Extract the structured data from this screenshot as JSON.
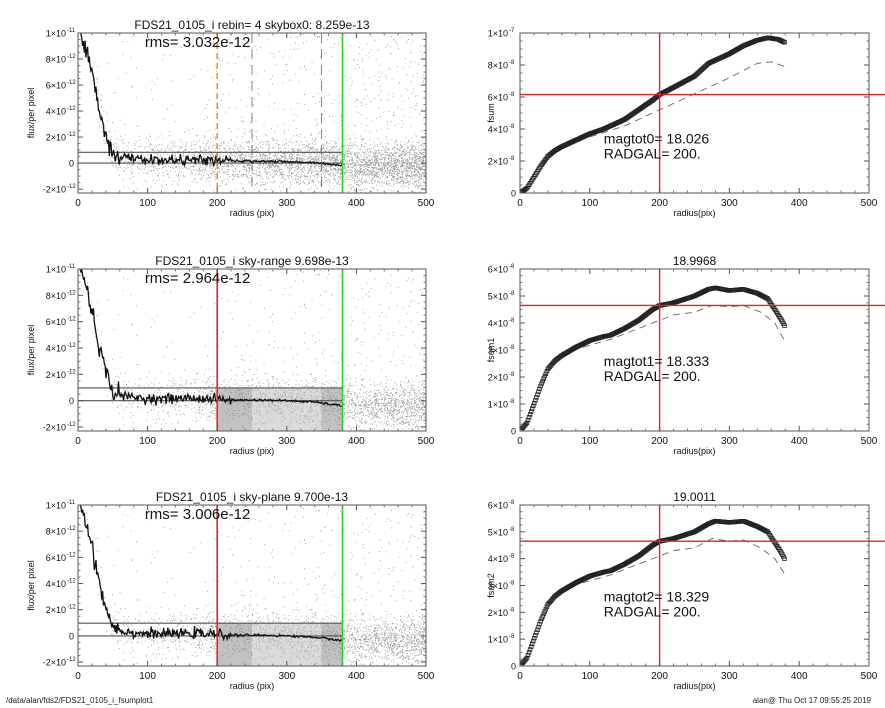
{
  "footer": {
    "path": "/data/alan/fds2/FDS21_0105_i_fsumplot1",
    "stamp": "alan@  Thu Oct 17 09:55:25 2019"
  },
  "colors": {
    "scatter": "#9a9a9a",
    "profile": "#111111",
    "red_marker": "#e0262a",
    "green_marker": "#2bd12b",
    "orange_marker": "#f0922e",
    "sky_line": "#555555",
    "dashed_model": "#666666",
    "sky_box_light": "#bdbdbd",
    "sky_box_dark": "#8f8f8f"
  },
  "chart_data": [
    {
      "id": "profile-rebin",
      "type": "scatter",
      "title": "FDS21_0105_i rebin= 4    skybox0:  8.259e-13",
      "annotation": "rms= 3.032e-12",
      "xlabel": "radius (pix)",
      "ylabel": "flux/per pixel",
      "xlim": [
        0,
        500
      ],
      "ylim": [
        -2.3e-12,
        1e-11
      ],
      "xticks": [
        "0",
        "100",
        "200",
        "300",
        "400",
        "500"
      ],
      "yticks": [
        {
          "v": -2e-12,
          "mant": "-2×10",
          "exp": "-12"
        },
        {
          "v": 0,
          "mant": "0",
          "exp": ""
        },
        {
          "v": 2e-12,
          "mant": "2×10",
          "exp": "-12"
        },
        {
          "v": 4e-12,
          "mant": "4×10",
          "exp": "-12"
        },
        {
          "v": 6e-12,
          "mant": "6×10",
          "exp": "-12"
        },
        {
          "v": 8e-12,
          "mant": "8×10",
          "exp": "-12"
        },
        {
          "v": 1e-11,
          "mant": "1×10",
          "exp": "-11"
        }
      ],
      "hlines": [
        {
          "y": 0,
          "x_end": 380
        },
        {
          "y": 8.259e-13,
          "x_end": 380
        }
      ],
      "vlines": [
        {
          "x": 200,
          "style": "dashed",
          "color": "orange_marker"
        },
        {
          "x": 250,
          "style": "dashed",
          "color": "dashed_model"
        },
        {
          "x": 350,
          "style": "dashed",
          "color": "dashed_model"
        },
        {
          "x": 380,
          "style": "solid",
          "color": "green_marker"
        }
      ],
      "sky_boxes": [],
      "profile_end_x": 380,
      "profile_points": [
        [
          3,
          1e-11
        ],
        [
          10,
          9e-12
        ],
        [
          15,
          8e-12
        ],
        [
          20,
          6.8e-12
        ],
        [
          25,
          5.6e-12
        ],
        [
          30,
          4.3e-12
        ],
        [
          35,
          3.2e-12
        ],
        [
          40,
          2.2e-12
        ],
        [
          45,
          1.4e-12
        ],
        [
          50,
          8e-13
        ],
        [
          60,
          5e-13
        ],
        [
          70,
          4e-13
        ],
        [
          90,
          3e-13
        ],
        [
          120,
          2e-13
        ],
        [
          160,
          2.5e-13
        ],
        [
          200,
          2e-13
        ],
        [
          230,
          1.5e-13
        ],
        [
          270,
          1.5e-13
        ],
        [
          300,
          1e-13
        ],
        [
          340,
          5e-14
        ],
        [
          380,
          -2e-13
        ]
      ]
    },
    {
      "id": "growth-fsum",
      "type": "scatter",
      "title": "",
      "annotation_lines": [
        "magtot0=  18.026",
        "RADGAL=    200."
      ],
      "xlabel": "radius(pix)",
      "ylabel": "fsum",
      "xlim": [
        0,
        500
      ],
      "ylim": [
        0,
        1e-07
      ],
      "xticks": [
        "0",
        "100",
        "200",
        "300",
        "400",
        "500"
      ],
      "yticks": [
        {
          "v": 0,
          "mant": "0",
          "exp": ""
        },
        {
          "v": 2e-08,
          "mant": "2×10",
          "exp": "-8"
        },
        {
          "v": 4e-08,
          "mant": "4×10",
          "exp": "-8"
        },
        {
          "v": 6e-08,
          "mant": "6×10",
          "exp": "-8"
        },
        {
          "v": 8e-08,
          "mant": "8×10",
          "exp": "-8"
        },
        {
          "v": 1e-07,
          "mant": "1×10",
          "exp": "-7"
        }
      ],
      "crosshair": {
        "x": 200,
        "y": 6.15e-08
      },
      "growth_curve": [
        [
          0,
          0
        ],
        [
          10,
          3e-09
        ],
        [
          20,
          1e-08
        ],
        [
          30,
          1.7e-08
        ],
        [
          40,
          2.3e-08
        ],
        [
          50,
          2.65e-08
        ],
        [
          60,
          2.9e-08
        ],
        [
          80,
          3.3e-08
        ],
        [
          100,
          3.7e-08
        ],
        [
          120,
          4e-08
        ],
        [
          130,
          4.2e-08
        ],
        [
          150,
          4.6e-08
        ],
        [
          170,
          5.2e-08
        ],
        [
          190,
          5.8e-08
        ],
        [
          200,
          6.15e-08
        ],
        [
          220,
          6.6e-08
        ],
        [
          250,
          7.3e-08
        ],
        [
          270,
          8.1e-08
        ],
        [
          280,
          8.3e-08
        ],
        [
          300,
          8.7e-08
        ],
        [
          320,
          9.2e-08
        ],
        [
          340,
          9.55e-08
        ],
        [
          355,
          9.7e-08
        ],
        [
          370,
          9.6e-08
        ],
        [
          380,
          9.4e-08
        ]
      ],
      "model_curve": [
        [
          100,
          3.5e-08
        ],
        [
          150,
          4.2e-08
        ],
        [
          200,
          5.2e-08
        ],
        [
          250,
          6.2e-08
        ],
        [
          300,
          7.2e-08
        ],
        [
          340,
          8.1e-08
        ],
        [
          360,
          8.2e-08
        ],
        [
          380,
          7.9e-08
        ]
      ]
    },
    {
      "id": "profile-sky-range",
      "type": "scatter",
      "title": "FDS21_0105_i sky-range  9.698e-13",
      "annotation": "rms= 2.964e-12",
      "xlabel": "radius (pix)",
      "ylabel": "flux/per pixel",
      "xlim": [
        0,
        500
      ],
      "ylim": [
        -2.3e-12,
        1e-11
      ],
      "xticks": [
        "0",
        "100",
        "200",
        "300",
        "400",
        "500"
      ],
      "yticks": [
        {
          "v": -2e-12,
          "mant": "-2×10",
          "exp": "-12"
        },
        {
          "v": 0,
          "mant": "0",
          "exp": ""
        },
        {
          "v": 2e-12,
          "mant": "2×10",
          "exp": "-12"
        },
        {
          "v": 4e-12,
          "mant": "4×10",
          "exp": "-12"
        },
        {
          "v": 6e-12,
          "mant": "6×10",
          "exp": "-12"
        },
        {
          "v": 8e-12,
          "mant": "8×10",
          "exp": "-12"
        },
        {
          "v": 1e-11,
          "mant": "1×10",
          "exp": "-11"
        }
      ],
      "hlines": [
        {
          "y": 0,
          "x_end": 380
        },
        {
          "y": 9.698e-13,
          "x_end": 380
        }
      ],
      "vlines": [
        {
          "x": 200,
          "style": "solid",
          "color": "red_marker"
        },
        {
          "x": 380,
          "style": "solid",
          "color": "green_marker"
        }
      ],
      "sky_boxes": [
        {
          "x0": 200,
          "x1": 250,
          "tone": "sky_box_dark"
        },
        {
          "x0": 250,
          "x1": 350,
          "tone": "sky_box_light"
        },
        {
          "x0": 350,
          "x1": 380,
          "tone": "sky_box_dark"
        }
      ],
      "profile_end_x": 380,
      "profile_points": [
        [
          3,
          1e-11
        ],
        [
          10,
          9e-12
        ],
        [
          15,
          8e-12
        ],
        [
          20,
          6.8e-12
        ],
        [
          25,
          5.6e-12
        ],
        [
          30,
          4.3e-12
        ],
        [
          35,
          3.2e-12
        ],
        [
          40,
          2.2e-12
        ],
        [
          45,
          1.4e-12
        ],
        [
          50,
          8e-13
        ],
        [
          60,
          5e-13
        ],
        [
          70,
          3e-13
        ],
        [
          90,
          2e-13
        ],
        [
          120,
          1.5e-13
        ],
        [
          160,
          2e-13
        ],
        [
          200,
          1e-13
        ],
        [
          230,
          5e-14
        ],
        [
          270,
          5e-14
        ],
        [
          300,
          0.0
        ],
        [
          340,
          -1e-13
        ],
        [
          380,
          -4e-13
        ]
      ]
    },
    {
      "id": "growth-fsum1",
      "type": "scatter",
      "title": "18.9968",
      "annotation_lines": [
        "magtot1=  18.333",
        "RADGAL=    200."
      ],
      "xlabel": "radius(pix)",
      "ylabel": "fsum1",
      "xlim": [
        0,
        500
      ],
      "ylim": [
        0,
        6e-08
      ],
      "xticks": [
        "0",
        "100",
        "200",
        "300",
        "400",
        "500"
      ],
      "yticks": [
        {
          "v": 0,
          "mant": "0",
          "exp": ""
        },
        {
          "v": 1e-08,
          "mant": "1×10",
          "exp": "-8"
        },
        {
          "v": 2e-08,
          "mant": "2×10",
          "exp": "-8"
        },
        {
          "v": 3e-08,
          "mant": "3×10",
          "exp": "-8"
        },
        {
          "v": 4e-08,
          "mant": "4×10",
          "exp": "-8"
        },
        {
          "v": 5e-08,
          "mant": "5×10",
          "exp": "-8"
        },
        {
          "v": 6e-08,
          "mant": "6×10",
          "exp": "-8"
        }
      ],
      "crosshair": {
        "x": 200,
        "y": 4.65e-08
      },
      "growth_curve": [
        [
          0,
          0
        ],
        [
          10,
          3e-09
        ],
        [
          20,
          1e-08
        ],
        [
          30,
          1.7e-08
        ],
        [
          40,
          2.3e-08
        ],
        [
          50,
          2.6e-08
        ],
        [
          60,
          2.8e-08
        ],
        [
          80,
          3.1e-08
        ],
        [
          100,
          3.35e-08
        ],
        [
          120,
          3.5e-08
        ],
        [
          130,
          3.55e-08
        ],
        [
          150,
          3.8e-08
        ],
        [
          170,
          4.1e-08
        ],
        [
          190,
          4.5e-08
        ],
        [
          200,
          4.65e-08
        ],
        [
          220,
          4.75e-08
        ],
        [
          250,
          5e-08
        ],
        [
          270,
          5.25e-08
        ],
        [
          280,
          5.3e-08
        ],
        [
          300,
          5.2e-08
        ],
        [
          320,
          5.25e-08
        ],
        [
          340,
          5.1e-08
        ],
        [
          355,
          4.9e-08
        ],
        [
          365,
          4.5e-08
        ],
        [
          375,
          4.1e-08
        ],
        [
          380,
          3.85e-08
        ]
      ],
      "model_curve": [
        [
          90,
          3.1e-08
        ],
        [
          130,
          3.4e-08
        ],
        [
          170,
          3.8e-08
        ],
        [
          200,
          4.1e-08
        ],
        [
          220,
          4.3e-08
        ],
        [
          250,
          4.4e-08
        ],
        [
          275,
          4.65e-08
        ],
        [
          300,
          4.6e-08
        ],
        [
          320,
          4.65e-08
        ],
        [
          345,
          4.4e-08
        ],
        [
          365,
          4e-08
        ],
        [
          380,
          3.3e-08
        ]
      ]
    },
    {
      "id": "profile-sky-plane",
      "type": "scatter",
      "title": "FDS21_0105_i sky-plane  9.700e-13",
      "annotation": "rms= 3.006e-12",
      "xlabel": "radius (pix)",
      "ylabel": "flux/per pixel",
      "xlim": [
        0,
        500
      ],
      "ylim": [
        -2.3e-12,
        1e-11
      ],
      "xticks": [
        "0",
        "100",
        "200",
        "300",
        "400",
        "500"
      ],
      "yticks": [
        {
          "v": -2e-12,
          "mant": "-2×10",
          "exp": "-12"
        },
        {
          "v": 0,
          "mant": "0",
          "exp": ""
        },
        {
          "v": 2e-12,
          "mant": "2×10",
          "exp": "-12"
        },
        {
          "v": 4e-12,
          "mant": "4×10",
          "exp": "-12"
        },
        {
          "v": 6e-12,
          "mant": "6×10",
          "exp": "-12"
        },
        {
          "v": 8e-12,
          "mant": "8×10",
          "exp": "-12"
        },
        {
          "v": 1e-11,
          "mant": "1×10",
          "exp": "-11"
        }
      ],
      "hlines": [
        {
          "y": 0,
          "x_end": 380
        },
        {
          "y": 9.7e-13,
          "x_end": 380
        }
      ],
      "vlines": [
        {
          "x": 200,
          "style": "solid",
          "color": "red_marker"
        },
        {
          "x": 380,
          "style": "solid",
          "color": "green_marker"
        }
      ],
      "sky_boxes": [
        {
          "x0": 200,
          "x1": 250,
          "tone": "sky_box_dark"
        },
        {
          "x0": 250,
          "x1": 350,
          "tone": "sky_box_light"
        },
        {
          "x0": 350,
          "x1": 380,
          "tone": "sky_box_dark"
        }
      ],
      "profile_end_x": 380,
      "profile_points": [
        [
          3,
          1e-11
        ],
        [
          10,
          9e-12
        ],
        [
          15,
          8e-12
        ],
        [
          20,
          6.8e-12
        ],
        [
          25,
          5.6e-12
        ],
        [
          30,
          4.3e-12
        ],
        [
          35,
          3.2e-12
        ],
        [
          40,
          2.2e-12
        ],
        [
          45,
          1.4e-12
        ],
        [
          50,
          8e-13
        ],
        [
          60,
          5e-13
        ],
        [
          70,
          3e-13
        ],
        [
          90,
          2e-13
        ],
        [
          120,
          1.5e-13
        ],
        [
          160,
          2e-13
        ],
        [
          200,
          1e-13
        ],
        [
          230,
          5e-14
        ],
        [
          270,
          5e-14
        ],
        [
          300,
          0.0
        ],
        [
          340,
          -1e-13
        ],
        [
          380,
          -3.5e-13
        ]
      ]
    },
    {
      "id": "growth-fsum2",
      "type": "scatter",
      "title": "19.0011",
      "annotation_lines": [
        "magtot2=  18.329",
        "RADGAL=    200."
      ],
      "xlabel": "radius(pix)",
      "ylabel": "fsum2",
      "xlim": [
        0,
        500
      ],
      "ylim": [
        0,
        6e-08
      ],
      "xticks": [
        "0",
        "100",
        "200",
        "300",
        "400",
        "500"
      ],
      "yticks": [
        {
          "v": 0,
          "mant": "0",
          "exp": ""
        },
        {
          "v": 1e-08,
          "mant": "1×10",
          "exp": "-8"
        },
        {
          "v": 2e-08,
          "mant": "2×10",
          "exp": "-8"
        },
        {
          "v": 3e-08,
          "mant": "3×10",
          "exp": "-8"
        },
        {
          "v": 4e-08,
          "mant": "4×10",
          "exp": "-8"
        },
        {
          "v": 5e-08,
          "mant": "5×10",
          "exp": "-8"
        },
        {
          "v": 6e-08,
          "mant": "6×10",
          "exp": "-8"
        }
      ],
      "crosshair": {
        "x": 200,
        "y": 4.65e-08
      },
      "growth_curve": [
        [
          0,
          0
        ],
        [
          10,
          3e-09
        ],
        [
          20,
          1e-08
        ],
        [
          30,
          1.7e-08
        ],
        [
          40,
          2.3e-08
        ],
        [
          50,
          2.6e-08
        ],
        [
          60,
          2.8e-08
        ],
        [
          80,
          3.1e-08
        ],
        [
          100,
          3.35e-08
        ],
        [
          120,
          3.5e-08
        ],
        [
          130,
          3.55e-08
        ],
        [
          150,
          3.8e-08
        ],
        [
          170,
          4.1e-08
        ],
        [
          190,
          4.5e-08
        ],
        [
          200,
          4.65e-08
        ],
        [
          220,
          4.75e-08
        ],
        [
          250,
          5e-08
        ],
        [
          270,
          5.3e-08
        ],
        [
          280,
          5.4e-08
        ],
        [
          300,
          5.35e-08
        ],
        [
          320,
          5.4e-08
        ],
        [
          340,
          5.2e-08
        ],
        [
          355,
          5e-08
        ],
        [
          365,
          4.6e-08
        ],
        [
          375,
          4.2e-08
        ],
        [
          380,
          3.95e-08
        ]
      ],
      "model_curve": [
        [
          90,
          3.1e-08
        ],
        [
          130,
          3.4e-08
        ],
        [
          170,
          3.8e-08
        ],
        [
          200,
          4.1e-08
        ],
        [
          220,
          4.3e-08
        ],
        [
          250,
          4.4e-08
        ],
        [
          275,
          4.75e-08
        ],
        [
          300,
          4.65e-08
        ],
        [
          320,
          4.7e-08
        ],
        [
          345,
          4.4e-08
        ],
        [
          365,
          4e-08
        ],
        [
          380,
          3.4e-08
        ]
      ]
    }
  ]
}
